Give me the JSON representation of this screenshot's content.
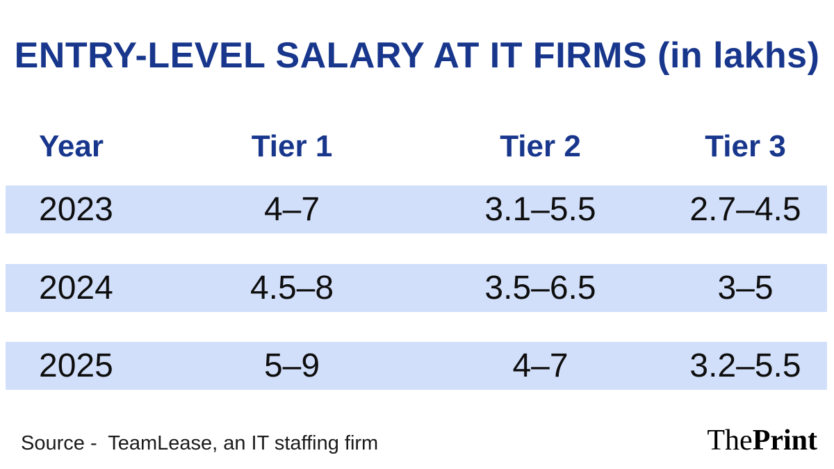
{
  "chart_data": {
    "type": "table",
    "title": "ENTRY-LEVEL SALARY AT IT FIRMS (in lakhs)",
    "columns": [
      "Year",
      "Tier 1",
      "Tier 2",
      "Tier 3"
    ],
    "rows": [
      [
        "2023",
        "4–7",
        "3.1–5.5",
        "2.7–4.5"
      ],
      [
        "2024",
        "4.5–8",
        "3.5–6.5",
        "3–5"
      ],
      [
        "2025",
        "5–9",
        "4–7",
        "3.2–5.5"
      ]
    ]
  },
  "footer": {
    "source_text": "Source -  TeamLease, an IT staffing firm",
    "brand_the": "The",
    "brand_print": "Print"
  },
  "colors": {
    "heading_blue": "#17368C",
    "row_band_blue": "#D2DFFA",
    "body_text": "#0e0e0e",
    "background": "#ffffff"
  }
}
